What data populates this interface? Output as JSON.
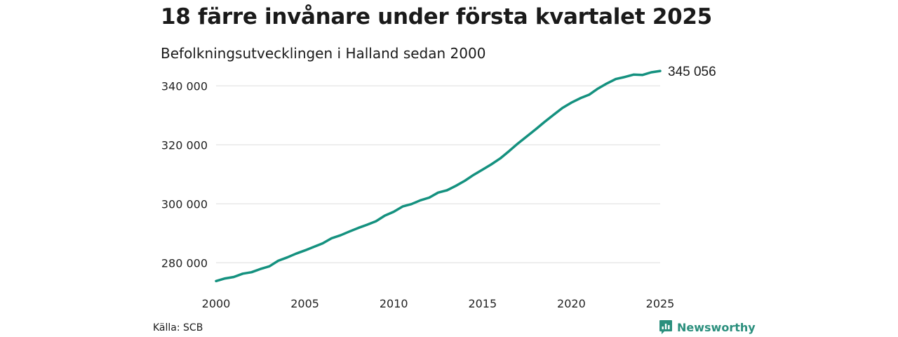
{
  "title": "18 färre invånare under första kvartalet 2025",
  "subtitle": "Befolkningsutvecklingen i Halland sedan 2000",
  "source": "Källa: SCB",
  "brand": "Newsworthy",
  "colors": {
    "line": "#14917f",
    "grid": "#dddddd",
    "brand": "#2b8f7d"
  },
  "chart_data": {
    "type": "line",
    "title": "18 färre invånare under första kvartalet 2025",
    "subtitle": "Befolkningsutvecklingen i Halland sedan 2000",
    "xlabel": "",
    "ylabel": "",
    "xlim": [
      2000,
      2025
    ],
    "ylim": [
      271500,
      346500
    ],
    "x_ticks": [
      {
        "value": 2000,
        "label": "2000"
      },
      {
        "value": 2005,
        "label": "2005"
      },
      {
        "value": 2010,
        "label": "2010"
      },
      {
        "value": 2015,
        "label": "2015"
      },
      {
        "value": 2020,
        "label": "2020"
      },
      {
        "value": 2025,
        "label": "2025"
      }
    ],
    "y_ticks": [
      {
        "value": 280000,
        "label": "280 000"
      },
      {
        "value": 300000,
        "label": "300 000"
      },
      {
        "value": 320000,
        "label": "320 000"
      },
      {
        "value": 340000,
        "label": "340 000"
      }
    ],
    "grid": true,
    "end_label": "345 056",
    "series": [
      {
        "x": [
          2000.0,
          2000.5,
          2001.0,
          2001.5,
          2002.0,
          2002.5,
          2003.0,
          2003.5,
          2004.0,
          2004.5,
          2005.0,
          2005.5,
          2006.0,
          2006.5,
          2007.0,
          2007.5,
          2008.0,
          2008.5,
          2009.0,
          2009.5,
          2010.0,
          2010.5,
          2011.0,
          2011.5,
          2012.0,
          2012.5,
          2013.0,
          2013.5,
          2014.0,
          2014.5,
          2015.0,
          2015.5,
          2016.0,
          2016.5,
          2017.0,
          2017.5,
          2018.0,
          2018.5,
          2019.0,
          2019.5,
          2020.0,
          2020.5,
          2021.0,
          2021.5,
          2022.0,
          2022.5,
          2023.0,
          2023.5,
          2024.0,
          2024.5,
          2025.0
        ],
        "values": [
          273800,
          274700,
          275200,
          276300,
          276800,
          277900,
          278800,
          280700,
          281800,
          283100,
          284200,
          285400,
          286600,
          288300,
          289300,
          290600,
          291800,
          292900,
          294100,
          296000,
          297300,
          299100,
          299900,
          301200,
          302100,
          303800,
          304600,
          306100,
          307800,
          309800,
          311600,
          313400,
          315400,
          317900,
          320500,
          322900,
          325300,
          327800,
          330200,
          332500,
          334300,
          335800,
          337000,
          339100,
          340800,
          342300,
          343000,
          343800,
          343700,
          344600,
          345056
        ]
      }
    ]
  }
}
